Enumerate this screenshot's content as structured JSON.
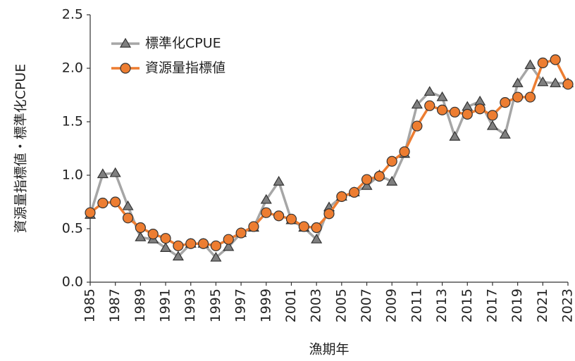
{
  "chart_data": {
    "type": "line",
    "x_label": "漁期年",
    "y_label": "資源量指標値・標準化CPUE",
    "x": [
      1985,
      1986,
      1987,
      1988,
      1989,
      1990,
      1991,
      1992,
      1993,
      1994,
      1995,
      1996,
      1997,
      1998,
      1999,
      2000,
      2001,
      2002,
      2003,
      2004,
      2005,
      2006,
      2007,
      2008,
      2009,
      2010,
      2011,
      2012,
      2013,
      2014,
      2015,
      2016,
      2017,
      2018,
      2019,
      2020,
      2021,
      2022,
      2023
    ],
    "series": [
      {
        "name": "標準化CPUE",
        "color": "#a6a6a6",
        "marker": "triangle",
        "marker_color": "#7f7f7f",
        "values": [
          0.63,
          1.01,
          1.02,
          0.71,
          0.42,
          0.4,
          0.32,
          0.24,
          0.36,
          0.36,
          0.23,
          0.33,
          0.46,
          0.51,
          0.77,
          0.94,
          0.58,
          0.51,
          0.4,
          0.7,
          0.8,
          0.84,
          0.9,
          1.0,
          0.94,
          1.2,
          1.66,
          1.78,
          1.73,
          1.36,
          1.64,
          1.69,
          1.46,
          1.38,
          1.86,
          2.03,
          1.87,
          1.86,
          1.86
        ]
      },
      {
        "name": "資源量指標値",
        "color": "#ed7d31",
        "marker": "circle",
        "marker_color": "#ed7d31",
        "values": [
          0.65,
          0.74,
          0.75,
          0.6,
          0.51,
          0.45,
          0.41,
          0.34,
          0.36,
          0.36,
          0.34,
          0.4,
          0.46,
          0.52,
          0.65,
          0.62,
          0.59,
          0.52,
          0.51,
          0.64,
          0.8,
          0.84,
          0.96,
          0.99,
          1.13,
          1.22,
          1.46,
          1.65,
          1.61,
          1.59,
          1.57,
          1.62,
          1.56,
          1.68,
          1.73,
          1.73,
          2.05,
          2.08,
          1.85
        ]
      }
    ],
    "xlim": [
      1985,
      2023
    ],
    "xticks": [
      1985,
      1987,
      1989,
      1991,
      1993,
      1995,
      1997,
      1999,
      2001,
      2003,
      2005,
      2007,
      2009,
      2011,
      2013,
      2015,
      2017,
      2019,
      2021,
      2023
    ],
    "ylim": [
      0,
      2.5
    ],
    "yticks": [
      {
        "value": 0,
        "label": "0.0"
      },
      0.5,
      {
        "value": 1,
        "label": "1.0"
      },
      1.5,
      {
        "value": 2,
        "label": "2.0"
      },
      2.5
    ],
    "grid": false,
    "legend": "upper left"
  }
}
